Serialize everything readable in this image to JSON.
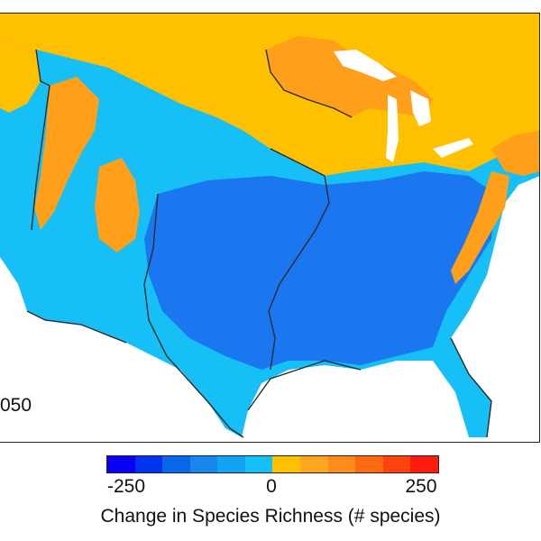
{
  "map": {
    "year_label": "050",
    "region": "Contiguous United States",
    "colors": {
      "strong_decrease": "#1a77f0",
      "decrease": "#2fa6f5",
      "slight_decrease": "#16c0f7",
      "increase": "#ffc000",
      "moderate_increase": "#ff9f1a",
      "strong_increase": "#f47a1f",
      "lakes": "#ffffff",
      "borders": "#2b2b2b"
    }
  },
  "legend": {
    "title": "Change in Species Richness (# species)",
    "ticks": [
      {
        "label": "-250",
        "value": -250
      },
      {
        "label": "0",
        "value": 0
      },
      {
        "label": "250",
        "value": 250
      }
    ],
    "min": -300,
    "max": 300,
    "swatches": [
      "#0a00f5",
      "#0033ee",
      "#0a66e8",
      "#1787ee",
      "#12a4f2",
      "#16c0f7",
      "#ffc000",
      "#ffa620",
      "#ff8c1a",
      "#ff6a10",
      "#ff4410",
      "#ff1a10"
    ]
  }
}
